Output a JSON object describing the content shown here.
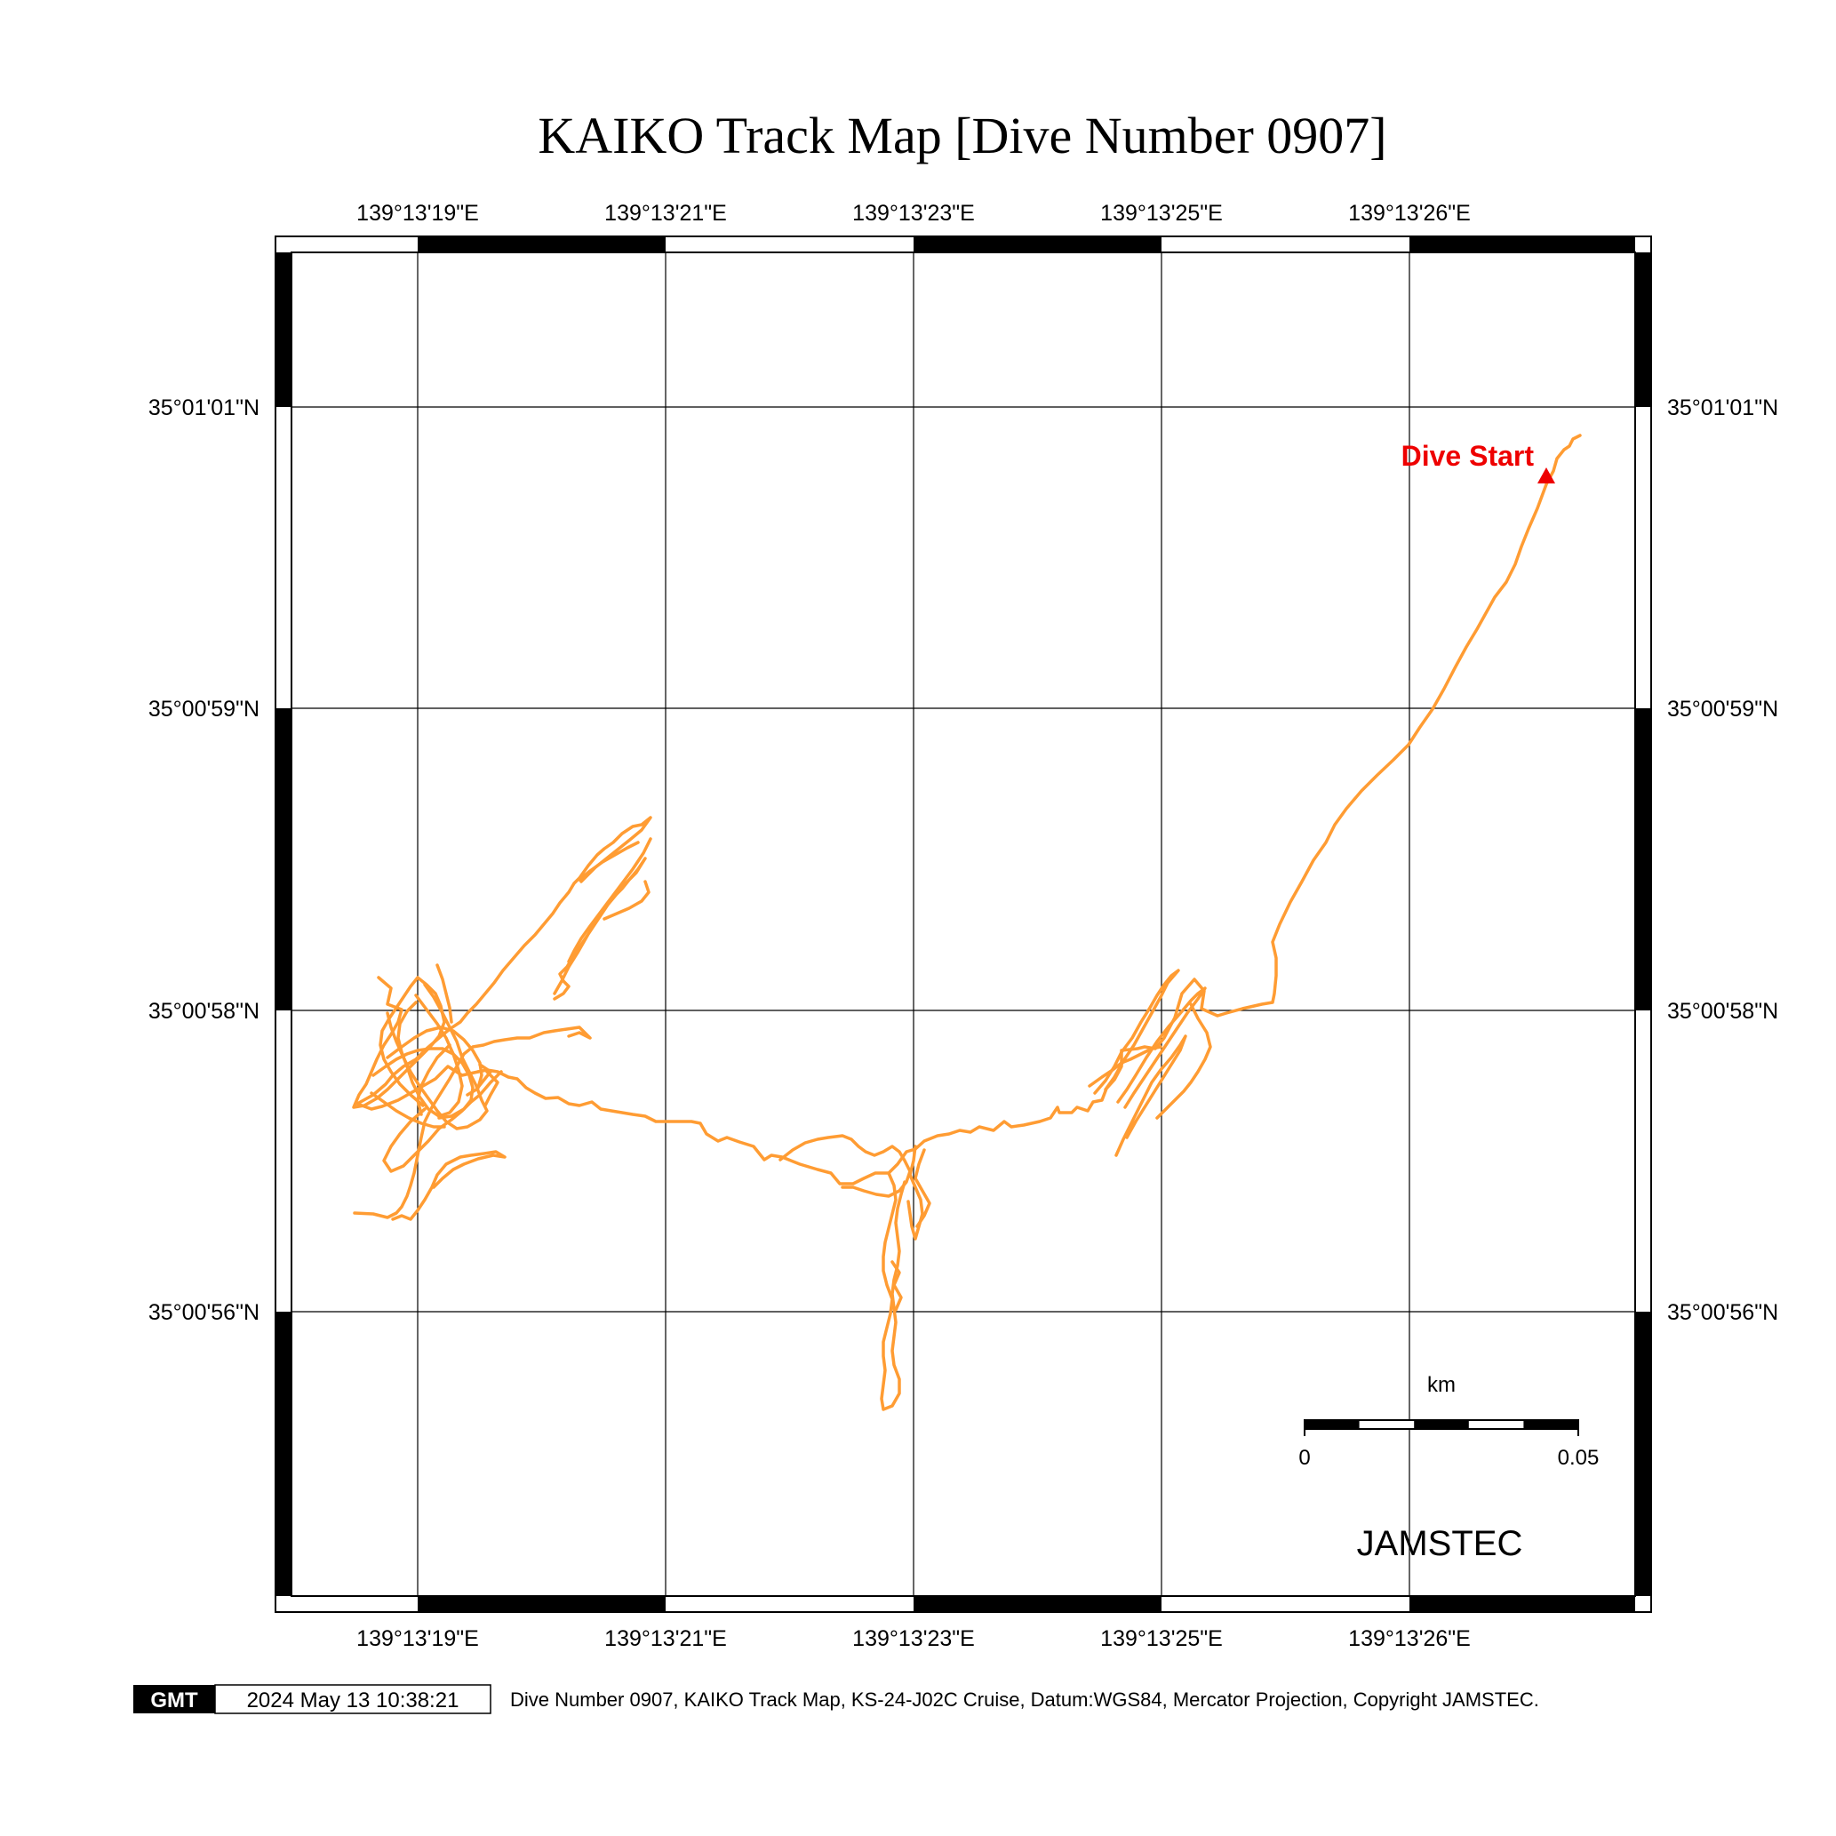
{
  "title": "KAIKO Track Map [Dive Number 0907]",
  "lon_labels": [
    "139°13'19\"E",
    "139°13'21\"E",
    "139°13'23\"E",
    "139°13'25\"E",
    "139°13'26\"E"
  ],
  "lat_labels": [
    "35°01'01\"N",
    "35°00'59\"N",
    "35°00'58\"N",
    "35°00'56\"N"
  ],
  "dive_start_label": "Dive Start",
  "scale_bar": {
    "unit": "km",
    "min_label": "0",
    "max_label": "0.05"
  },
  "org_label": "JAMSTEC",
  "footer": {
    "logo": "GMT",
    "timestamp": "2024 May 13 10:38:21",
    "caption": "Dive Number 0907, KAIKO Track Map, KS-24-J02C Cruise, Datum:WGS84, Mercator Projection, Copyright JAMSTEC."
  },
  "colors": {
    "track": "#ff9c33",
    "start_marker": "#ee0000",
    "frame": "#000000",
    "grid": "#000000"
  }
}
